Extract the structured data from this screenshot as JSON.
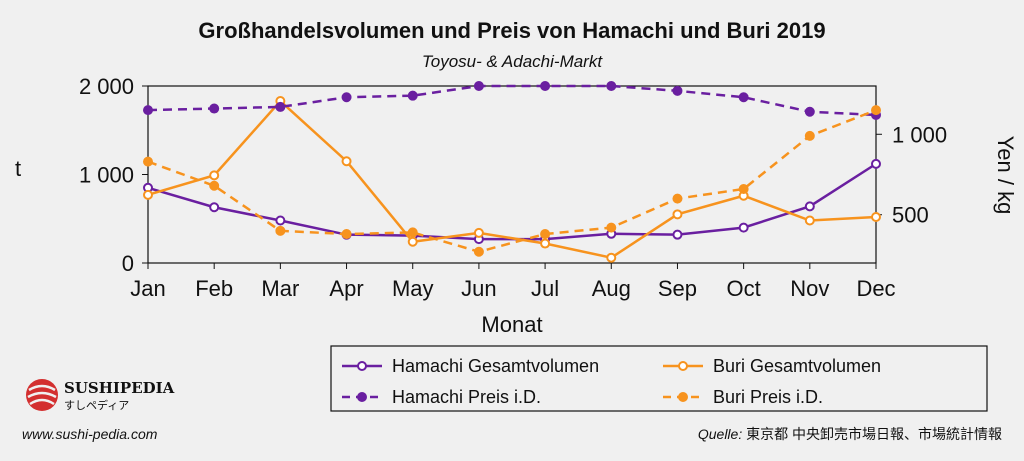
{
  "colors": {
    "hamachi": "#6a1fa0",
    "buri": "#f7931e"
  },
  "header": {
    "title": "Großhandelsvolumen und Preis von Hamachi und Buri 2019",
    "subtitle": "Toyosu- & Adachi-Markt"
  },
  "footer": {
    "website": "www.sushi-pedia.com",
    "source_label": "Quelle:",
    "source_text": " 東京都 中央卸売市場日報、市場統計情報",
    "logo_name": "SUSHIPEDIA",
    "logo_sub": "すしペディア"
  },
  "chart_data": {
    "type": "line",
    "categories": [
      "Jan",
      "Feb",
      "Mar",
      "Apr",
      "May",
      "Jun",
      "Jul",
      "Aug",
      "Sep",
      "Oct",
      "Nov",
      "Dec"
    ],
    "xlabel": "Monat",
    "ylabel_left": "t",
    "ylabel_right": "Yen / kg",
    "ylim_left": [
      0,
      2000
    ],
    "ylim_right": [
      200,
      1300
    ],
    "yticks_left": [
      {
        "value": 0,
        "label": "0"
      },
      {
        "value": 1000,
        "label": "1 000"
      },
      {
        "value": 2000,
        "label": "2 000"
      }
    ],
    "yticks_right": [
      {
        "value": 500,
        "label": "500"
      },
      {
        "value": 1000,
        "label": "1 000"
      }
    ],
    "grid": false,
    "legend_position": "bottom-right",
    "series": [
      {
        "name": "Hamachi Gesamtvolumen",
        "axis": "left",
        "color_key": "hamachi",
        "dashed": false,
        "filled": false,
        "values": [
          850,
          630,
          480,
          320,
          310,
          270,
          270,
          330,
          320,
          400,
          640,
          1120
        ]
      },
      {
        "name": "Buri Gesamtvolumen",
        "axis": "left",
        "color_key": "buri",
        "dashed": false,
        "filled": false,
        "values": [
          770,
          990,
          1830,
          1150,
          240,
          340,
          220,
          60,
          550,
          760,
          480,
          520
        ]
      },
      {
        "name": "Hamachi Preis i.D.",
        "axis": "right",
        "color_key": "hamachi",
        "dashed": true,
        "filled": true,
        "values": [
          1150,
          1160,
          1170,
          1230,
          1240,
          1300,
          1300,
          1300,
          1270,
          1230,
          1140,
          1120
        ]
      },
      {
        "name": "Buri Preis i.D.",
        "axis": "right",
        "color_key": "buri",
        "dashed": true,
        "filled": true,
        "values": [
          830,
          680,
          400,
          380,
          390,
          270,
          380,
          420,
          600,
          660,
          990,
          1150
        ]
      }
    ]
  }
}
